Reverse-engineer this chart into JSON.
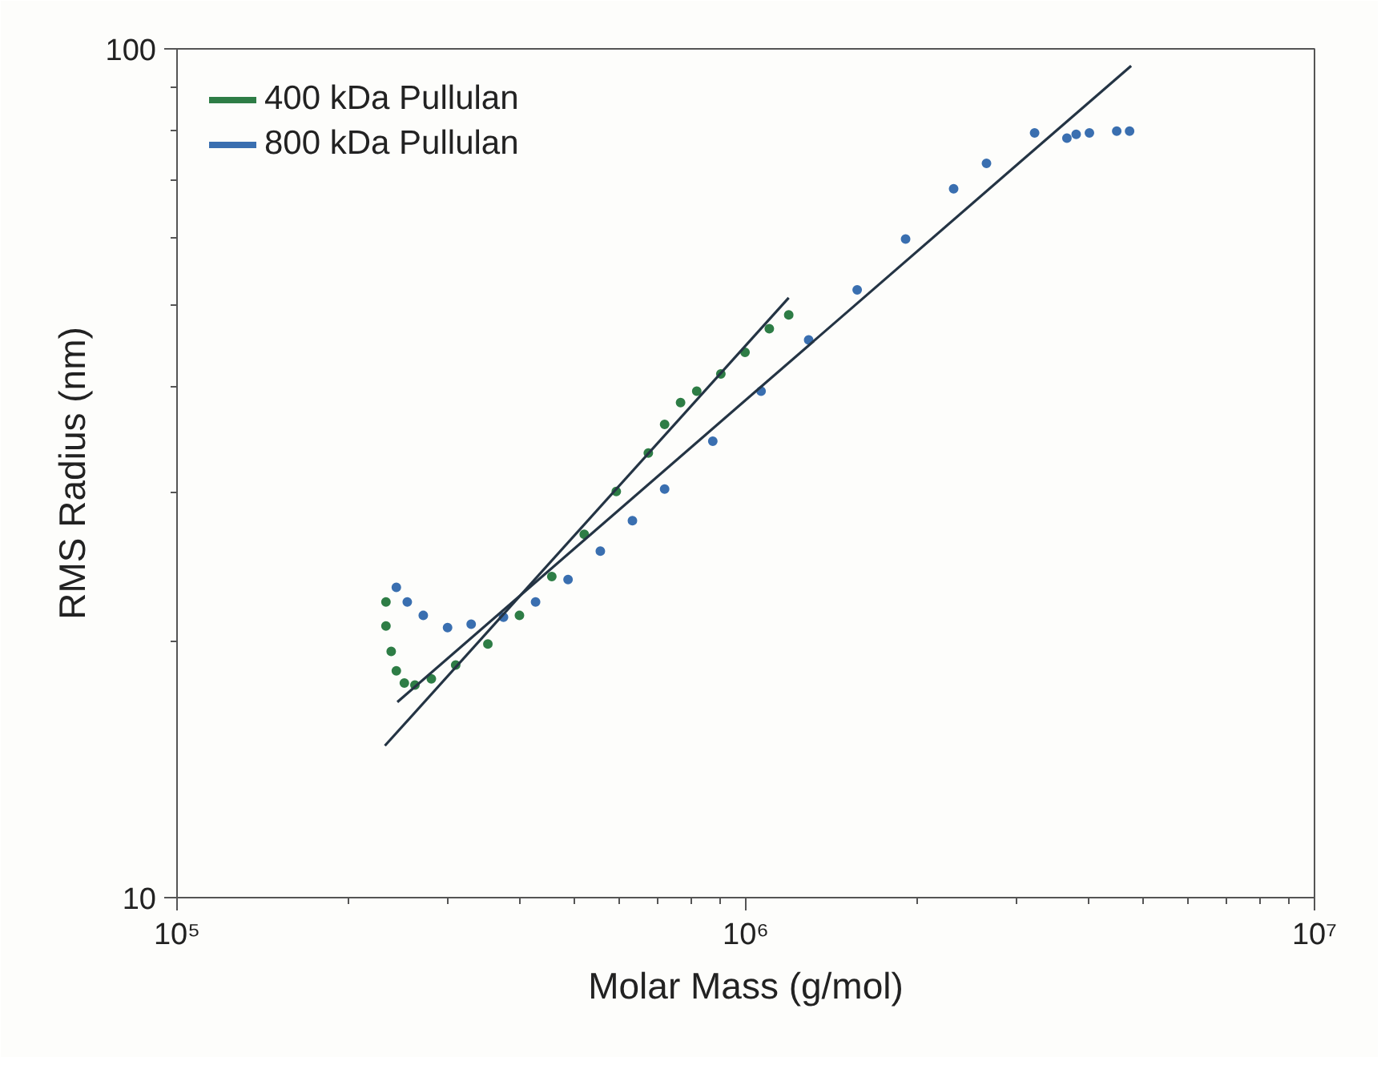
{
  "chart_data": {
    "type": "scatter",
    "xlabel": "Molar Mass (g/mol)",
    "ylabel": "RMS Radius (nm)",
    "log": "xy",
    "grid": false,
    "legend": "top left",
    "xlim": [
      100000,
      10000000
    ],
    "ylim": [
      10,
      100
    ],
    "xticks": [
      {
        "value": 100000,
        "label": "10⁵"
      },
      {
        "value": 1000000,
        "label": "10⁶"
      },
      {
        "value": 10000000,
        "label": "10⁷"
      }
    ],
    "yticks": [
      10,
      100
    ],
    "series": [
      {
        "name": "400 kDa Pullulan",
        "color": "#2e7d46",
        "marker": "circle",
        "x": [
          233000,
          233000,
          238000,
          243000,
          251000,
          262000,
          280000,
          309000,
          352000,
          400000,
          456000,
          520000,
          592000,
          674000,
          720000,
          768000,
          820000,
          904000,
          997000,
          1100000,
          1190000
        ],
        "values": [
          22.3,
          20.9,
          19.5,
          18.5,
          17.9,
          17.8,
          18.1,
          18.8,
          19.9,
          21.5,
          23.9,
          26.8,
          30.1,
          33.4,
          36.1,
          38.3,
          39.5,
          41.4,
          43.9,
          46.8,
          48.6
        ]
      },
      {
        "name": "800 kDa Pullulan",
        "color": "#3a6fb0",
        "marker": "circle",
        "x": [
          243000,
          254000,
          271000,
          299000,
          329000,
          375000,
          427000,
          487000,
          555000,
          632000,
          720000,
          875000,
          1064000,
          1290000,
          1570000,
          1910000,
          2320000,
          2650000,
          3220000,
          3670000,
          3810000,
          4020000,
          4490000,
          4730000
        ],
        "values": [
          23.2,
          22.3,
          21.5,
          20.8,
          21.0,
          21.4,
          22.3,
          23.7,
          25.6,
          27.8,
          30.3,
          34.5,
          39.5,
          45.4,
          52.0,
          59.7,
          68.4,
          73.3,
          79.6,
          78.5,
          79.3,
          79.6,
          80.0,
          80.0
        ]
      },
      {
        "type": "line",
        "color": "#243444",
        "marker": "none",
        "x": [
          232000,
          1190000
        ],
        "values": [
          15.1,
          50.9
        ]
      },
      {
        "type": "line",
        "color": "#243444",
        "marker": "none",
        "x": [
          244000,
          4760000
        ],
        "values": [
          17.0,
          95.5
        ]
      }
    ]
  }
}
